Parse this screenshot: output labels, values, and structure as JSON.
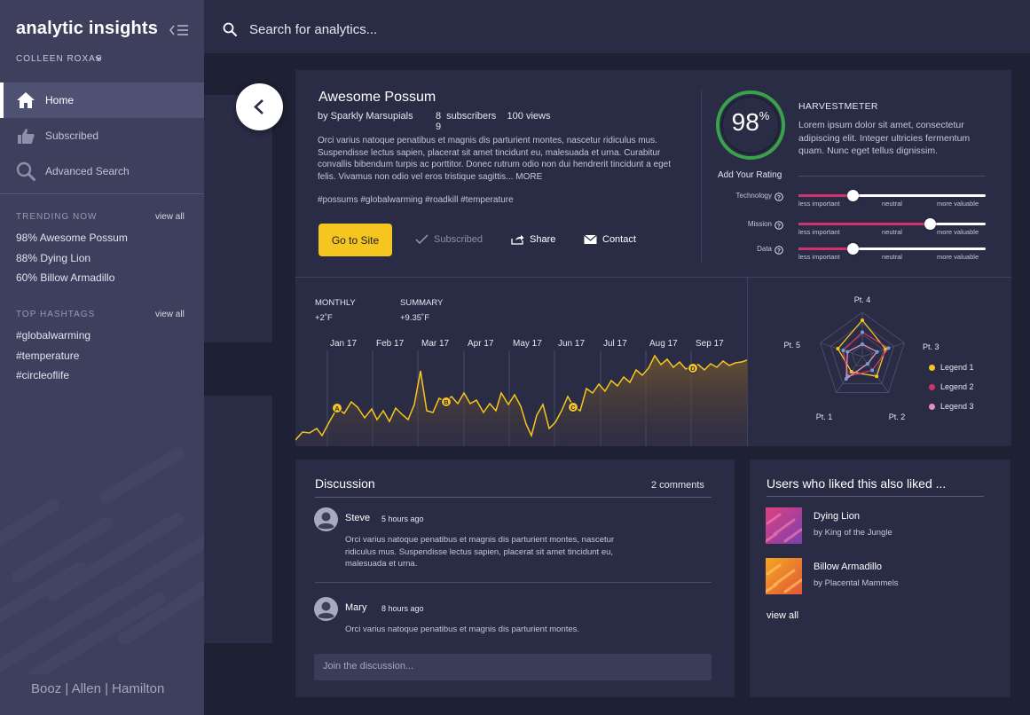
{
  "app": {
    "logo": "analytic insights",
    "user": "COLLEEN ROXAS",
    "footer": "Booz | Allen | Hamilton"
  },
  "nav": [
    {
      "label": "Home",
      "icon": "home-icon"
    },
    {
      "label": "Subscribed",
      "icon": "thumbs-up-icon"
    },
    {
      "label": "Advanced Search",
      "icon": "search-icon"
    }
  ],
  "trending": {
    "heading": "TRENDING NOW",
    "view_all": "view all",
    "items": [
      "98%  Awesome Possum",
      "88%  Dying Lion",
      "60%  Billow Armadillo"
    ]
  },
  "hashtags": {
    "heading": "TOP HASHTAGS",
    "view_all": "view all",
    "items": [
      "#globalwarming",
      "#temperature",
      "#circleoflife"
    ]
  },
  "search": {
    "placeholder": "Search for analytics..."
  },
  "detail": {
    "title": "Awesome Possum",
    "author": "by Sparkly Marsupials",
    "subscribers_count": "8",
    "subscribers_label": "subscribers",
    "views_count": "100",
    "views_label": "views",
    "extra_count": "9",
    "description": "Orci varius natoque penatibus et magnis dis parturient montes, nascetur ridiculus mus. Suspendisse lectus sapien, placerat sit amet tincidunt eu, malesuada et urna. Curabitur convallis bibendum turpis ac porttitor. Donec rutrum odio non dui hendrerit tincidunt a eget felis. Vivamus non odio vel eros tristique sagittis... MORE",
    "tags": "#possums #globalwarming #roadkill #temperature",
    "go_button": "Go to Site",
    "subscribed": "Subscribed",
    "share": "Share",
    "contact": "Contact"
  },
  "rating": {
    "value": "98",
    "unit": "%",
    "add_label": "Add Your Rating",
    "meter_title": "HARVESTMETER",
    "meter_desc": "Lorem ipsum dolor sit amet, consectetur adipiscing elit. Integer ultricies fermentum quam. Nunc eget tellus dignissim.",
    "sliders": [
      {
        "label": "Technology",
        "value": 0.29
      },
      {
        "label": "Mission",
        "value": 0.7
      },
      {
        "label": "Data",
        "value": 0.29
      }
    ],
    "scale": {
      "low": "less important",
      "mid": "neutral",
      "high": "more valuable"
    }
  },
  "timeline": {
    "monthly_label": "MONTHLY",
    "monthly_value": "+2˚F",
    "summary_label": "SUMMARY",
    "summary_value": "+9.35˚F",
    "months": [
      "Jan 17",
      "Feb 17",
      "Mar 17",
      "Apr 17",
      "May 17",
      "Jun 17",
      "Jul 17",
      "Aug 17",
      "Sep 17"
    ],
    "markers": [
      "A",
      "B",
      "C",
      "D"
    ],
    "accent": "#f5c61f"
  },
  "radar": {
    "axes": [
      "Pt. 4",
      "Pt. 3",
      "Pt. 2",
      "Pt. 1",
      "Pt. 5"
    ],
    "legend": [
      {
        "label": "Legend 1",
        "color": "#f5c61f"
      },
      {
        "label": "Legend 2",
        "color": "#d0336b"
      },
      {
        "label": "Legend 3",
        "color": "#e58fb4"
      }
    ]
  },
  "discussion": {
    "title": "Discussion",
    "count": "2 comments",
    "comments": [
      {
        "name": "Steve",
        "time": "5 hours ago",
        "text": "Orci varius natoque penatibus et magnis dis parturient montes, nascetur ridiculus mus. Suspendisse lectus sapien, placerat sit amet tincidunt eu, malesuada et urna."
      },
      {
        "name": "Mary",
        "time": "8 hours ago",
        "text": "Orci varius natoque penatibus et magnis dis parturient montes."
      }
    ],
    "placeholder": "Join the discussion..."
  },
  "liked": {
    "title": "Users who liked this also liked ...",
    "items": [
      {
        "name": "Dying Lion",
        "by": "by King of the Jungle"
      },
      {
        "name": "Billow Armadillo",
        "by": "by Placental Mammels"
      }
    ],
    "view_all": "view all"
  }
}
